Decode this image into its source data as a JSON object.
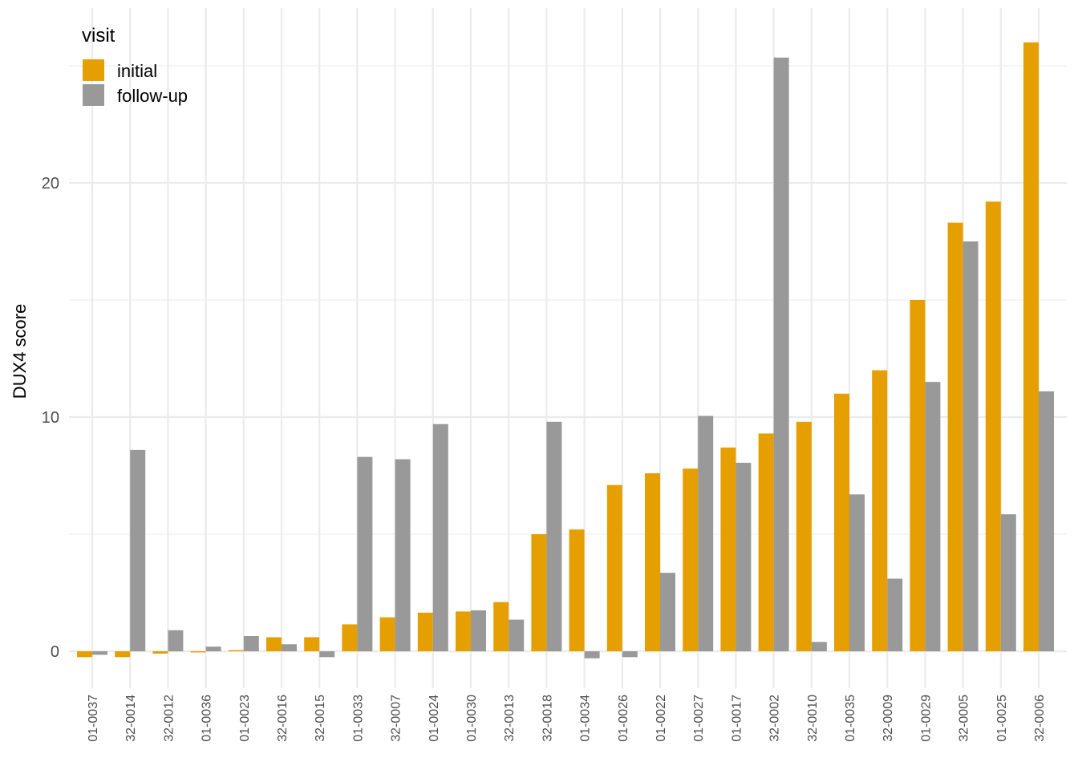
{
  "chart_data": {
    "type": "bar",
    "ylabel": "DUX4 score",
    "xlabel": "",
    "ylim": [
      -1.7,
      26.8
    ],
    "yticks": [
      0,
      10,
      20
    ],
    "grid": true,
    "legend": {
      "title": "visit",
      "placement": "top-left"
    },
    "categories": [
      "01-0037",
      "32-0014",
      "32-0012",
      "01-0036",
      "01-0023",
      "32-0016",
      "32-0015",
      "01-0033",
      "32-0007",
      "01-0024",
      "01-0030",
      "32-0013",
      "32-0018",
      "01-0034",
      "01-0026",
      "01-0022",
      "01-0027",
      "01-0017",
      "32-0002",
      "32-0010",
      "01-0035",
      "32-0009",
      "01-0029",
      "32-0005",
      "01-0025",
      "32-0006"
    ],
    "series": [
      {
        "name": "initial",
        "color": "#E69F00",
        "values": [
          -0.25,
          -0.25,
          -0.1,
          -0.05,
          0.05,
          0.6,
          0.6,
          1.15,
          1.45,
          1.65,
          1.7,
          2.1,
          5.0,
          5.2,
          7.1,
          7.6,
          7.8,
          8.7,
          9.3,
          9.8,
          11.0,
          12.0,
          15.0,
          18.3,
          19.2,
          26.0
        ]
      },
      {
        "name": "follow-up",
        "color": "#999999",
        "values": [
          -0.15,
          8.6,
          0.9,
          0.2,
          0.65,
          0.3,
          -0.25,
          8.3,
          8.2,
          9.7,
          1.75,
          1.35,
          9.8,
          -0.3,
          -0.25,
          3.35,
          10.05,
          8.05,
          25.35,
          0.4,
          6.7,
          3.1,
          11.5,
          17.5,
          5.85,
          11.1
        ]
      }
    ]
  }
}
